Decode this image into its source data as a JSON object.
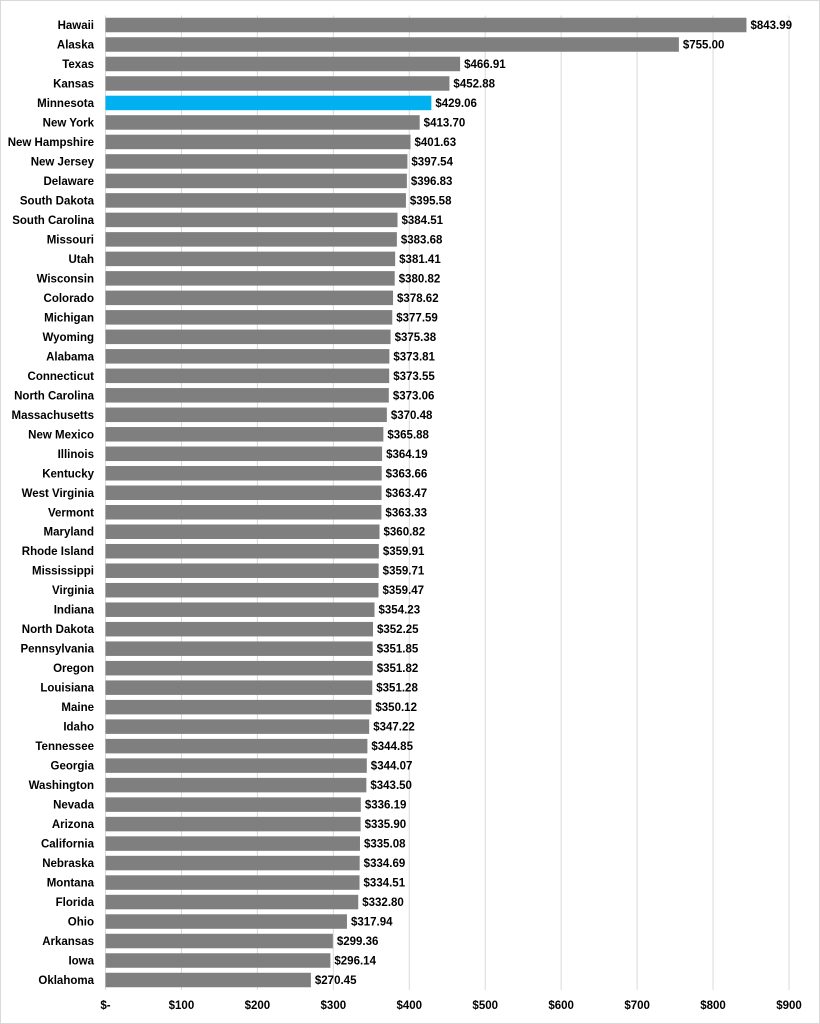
{
  "chart_data": {
    "type": "bar",
    "orientation": "horizontal",
    "title": "",
    "xlabel": "",
    "ylabel": "",
    "xlim": [
      0,
      900
    ],
    "x_ticks": [
      0,
      100,
      200,
      300,
      400,
      500,
      600,
      700,
      800,
      900
    ],
    "x_tick_labels": [
      "$-",
      "$100",
      "$200",
      "$300",
      "$400",
      "$500",
      "$600",
      "$700",
      "$800",
      "$900"
    ],
    "grid": "vertical",
    "bar_color": "#7f7f7f",
    "highlight_color": "#00b0f0",
    "highlight": "Minnesota",
    "categories": [
      "Hawaii",
      "Alaska",
      "Texas",
      "Kansas",
      "Minnesota",
      "New York",
      "New Hampshire",
      "New Jersey",
      "Delaware",
      "South Dakota",
      "South Carolina",
      "Missouri",
      "Utah",
      "Wisconsin",
      "Colorado",
      "Michigan",
      "Wyoming",
      "Alabama",
      "Connecticut",
      "North Carolina",
      "Massachusetts",
      "New Mexico",
      "Illinois",
      "Kentucky",
      "West Virginia",
      "Vermont",
      "Maryland",
      "Rhode Island",
      "Mississippi",
      "Virginia",
      "Indiana",
      "North Dakota",
      "Pennsylvania",
      "Oregon",
      "Louisiana",
      "Maine",
      "Idaho",
      "Tennessee",
      "Georgia",
      "Washington",
      "Nevada",
      "Arizona",
      "California",
      "Nebraska",
      "Montana",
      "Florida",
      "Ohio",
      "Arkansas",
      "Iowa",
      "Oklahoma"
    ],
    "values": [
      843.99,
      755.0,
      466.91,
      452.88,
      429.06,
      413.7,
      401.63,
      397.54,
      396.83,
      395.58,
      384.51,
      383.68,
      381.41,
      380.82,
      378.62,
      377.59,
      375.38,
      373.81,
      373.55,
      373.06,
      370.48,
      365.88,
      364.19,
      363.66,
      363.47,
      363.33,
      360.82,
      359.91,
      359.71,
      359.47,
      354.23,
      352.25,
      351.85,
      351.82,
      351.28,
      350.12,
      347.22,
      344.85,
      344.07,
      343.5,
      336.19,
      335.9,
      335.08,
      334.69,
      334.51,
      332.8,
      317.94,
      299.36,
      296.14,
      270.45
    ],
    "data_labels": [
      "$843.99",
      "$755.00",
      "$466.91",
      "$452.88",
      "$429.06",
      "$413.70",
      "$401.63",
      "$397.54",
      "$396.83",
      "$395.58",
      "$384.51",
      "$383.68",
      "$381.41",
      "$380.82",
      "$378.62",
      "$377.59",
      "$375.38",
      "$373.81",
      "$373.55",
      "$373.06",
      "$370.48",
      "$365.88",
      "$364.19",
      "$363.66",
      "$363.47",
      "$363.33",
      "$360.82",
      "$359.91",
      "$359.71",
      "$359.47",
      "$354.23",
      "$352.25",
      "$351.85",
      "$351.82",
      "$351.28",
      "$350.12",
      "$347.22",
      "$344.85",
      "$344.07",
      "$343.50",
      "$336.19",
      "$335.90",
      "$335.08",
      "$334.69",
      "$334.51",
      "$332.80",
      "$317.94",
      "$299.36",
      "$296.14",
      "$270.45"
    ]
  }
}
